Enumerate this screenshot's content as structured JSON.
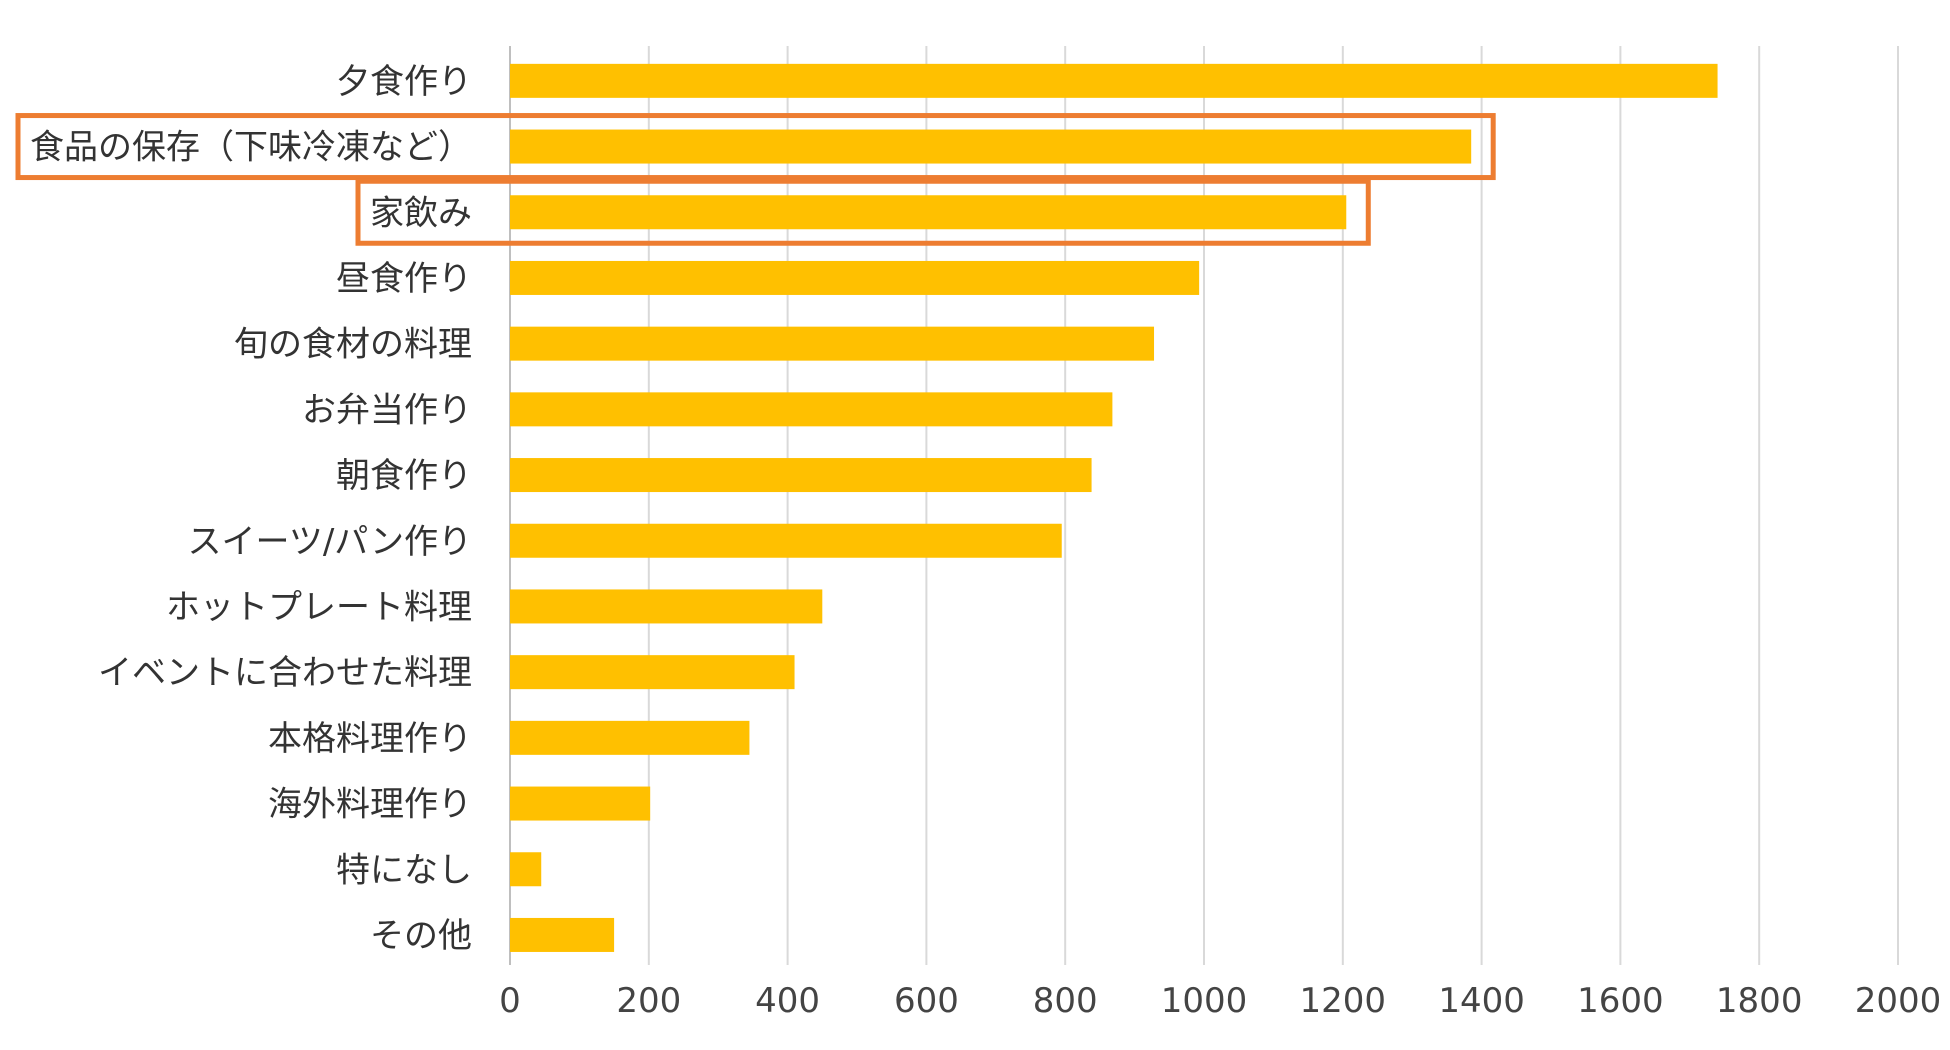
{
  "chart_data": {
    "type": "bar",
    "orientation": "horizontal",
    "title": "",
    "xlabel": "",
    "ylabel": "",
    "xlim": [
      0,
      2000
    ],
    "x_ticks": [
      0,
      200,
      400,
      600,
      800,
      1000,
      1200,
      1400,
      1600,
      1800,
      2000
    ],
    "grid": true,
    "bar_color": "#FFC000",
    "highlight_color": "#ED7D31",
    "categories": [
      "夕食作り",
      "食品の保存（下味冷凍など）",
      "家飲み",
      "昼食作り",
      "旬の食材の料理",
      "お弁当作り",
      "朝食作り",
      "スイーツ/パン作り",
      "ホットプレート料理",
      "イベントに合わせた料理",
      "本格料理作り",
      "海外料理作り",
      "特になし",
      "その他"
    ],
    "values": [
      1740,
      1385,
      1205,
      993,
      928,
      868,
      838,
      795,
      450,
      410,
      345,
      202,
      45,
      150
    ],
    "highlighted": [
      "食品の保存（下味冷凍など）",
      "家飲み"
    ]
  }
}
